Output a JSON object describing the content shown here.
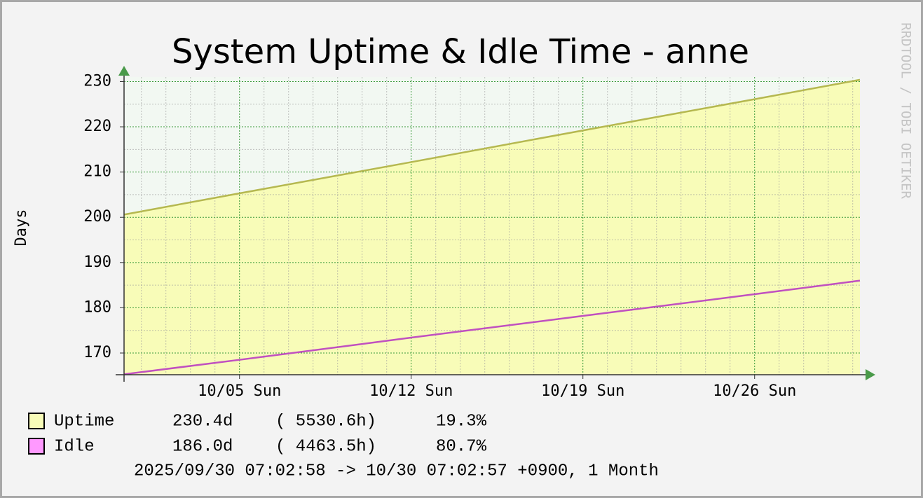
{
  "chart_data": {
    "type": "area",
    "title": "System Uptime & Idle Time - anne",
    "y_label": "Days",
    "watermark": "RRDTOOL / TOBI OETIKER",
    "footer": "2025/09/30 07:02:58 -> 10/30 07:02:57 +0900, 1 Month",
    "x": [
      "2025-09-30T07:02:58",
      "2025-10-05T00:00:00",
      "2025-10-12T00:00:00",
      "2025-10-19T00:00:00",
      "2025-10-26T00:00:00",
      "2025-10-30T07:02:57"
    ],
    "series": [
      {
        "name": "Uptime",
        "color": "#b5b850",
        "fill": "#f8fcb8",
        "swatch": "#f8fcb8",
        "values": [
          200.6,
          205.3,
          212.2,
          219.2,
          226.1,
          230.4
        ],
        "stats": [
          "230.4d",
          "( 5530.6h)",
          "19.3%"
        ]
      },
      {
        "name": "Idle",
        "color": "#c050c0",
        "swatch": "#ff99ff",
        "values": [
          165.3,
          168.5,
          173.4,
          178.2,
          183.0,
          186.0
        ],
        "stats": [
          "186.0d",
          "( 4463.5h)",
          "80.7%"
        ]
      }
    ],
    "xlim": [
      "2025-09-30T07:02:58",
      "2025-10-30T07:02:57"
    ],
    "xticks": [
      {
        "value": "2025-10-05T00:00:00",
        "label": "10/05 Sun"
      },
      {
        "value": "2025-10-12T00:00:00",
        "label": "10/12 Sun"
      },
      {
        "value": "2025-10-19T00:00:00",
        "label": "10/19 Sun"
      },
      {
        "value": "2025-10-26T00:00:00",
        "label": "10/26 Sun"
      }
    ],
    "xminorticks": [
      "2025-10-01T00:00:00",
      "2025-10-02T00:00:00",
      "2025-10-03T00:00:00",
      "2025-10-04T00:00:00",
      "2025-10-06T00:00:00",
      "2025-10-07T00:00:00",
      "2025-10-08T00:00:00",
      "2025-10-09T00:00:00",
      "2025-10-10T00:00:00",
      "2025-10-11T00:00:00",
      "2025-10-13T00:00:00",
      "2025-10-14T00:00:00",
      "2025-10-15T00:00:00",
      "2025-10-16T00:00:00",
      "2025-10-17T00:00:00",
      "2025-10-18T00:00:00",
      "2025-10-20T00:00:00",
      "2025-10-21T00:00:00",
      "2025-10-22T00:00:00",
      "2025-10-23T00:00:00",
      "2025-10-24T00:00:00",
      "2025-10-25T00:00:00",
      "2025-10-27T00:00:00",
      "2025-10-28T00:00:00",
      "2025-10-29T00:00:00",
      "2025-10-30T00:00:00"
    ],
    "ylim": [
      165.2,
      231
    ],
    "yticks": [
      170,
      180,
      190,
      200,
      210,
      220,
      230
    ],
    "yminorticks": [
      175,
      185,
      195,
      205,
      215,
      225
    ],
    "grid": true
  }
}
